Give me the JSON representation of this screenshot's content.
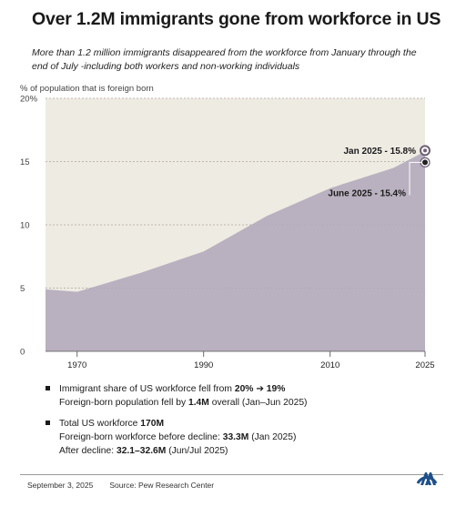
{
  "title": "Over 1.2M immigrants gone from workforce in US",
  "subtitle": "More than 1.2 million immigrants disappeared from the workforce from January through the end of July -including both workers and non-working individuals",
  "chart_data": {
    "type": "area",
    "ylabel": "% of population that is foreign born",
    "ylim": [
      0,
      20
    ],
    "yticks": [
      0,
      5,
      10,
      15,
      20
    ],
    "ytick_labels": [
      "0",
      "5",
      "10",
      "15",
      "20%"
    ],
    "xlim": [
      1965,
      2025
    ],
    "xticks": [
      1970,
      1990,
      2010,
      2025
    ],
    "x": [
      1965,
      1970,
      1980,
      1990,
      2000,
      2010,
      2020,
      2025
    ],
    "values": [
      4.9,
      4.7,
      6.2,
      7.9,
      10.7,
      12.9,
      14.5,
      15.8
    ],
    "grid": true,
    "annotations": [
      {
        "text": "Jan 2025 - 15.8%",
        "x": 2025,
        "y": 15.8
      },
      {
        "text": "June 2025 - 15.4%",
        "x": 2025,
        "y": 15.4
      }
    ],
    "colors": {
      "area": "#b9b1bf",
      "background": "#eeebe3",
      "grid": "#b9b49a",
      "marker": "#6e5f72"
    }
  },
  "bullets": [
    {
      "line1_prefix": "Immigrant share of US workforce fell from ",
      "line1_bold": "20% ➔ 19%",
      "line2_prefix": "Foreign-born population fell by  ",
      "line2_bold": "1.4M",
      "line2_suffix": " overall (Jan–Jun 2025)"
    },
    {
      "line1_prefix": "Total US workforce ",
      "line1_bold": "170M",
      "line2_prefix": "Foreign-born workforce before decline:  ",
      "line2_bold": "33.3M",
      "line2_suffix": " (Jan 2025)",
      "line3_prefix": "After decline:  ",
      "line3_bold": "32.1–32.6M",
      "line3_suffix": " (Jun/Jul 2025)"
    }
  ],
  "footer": {
    "date": "September 3, 2025",
    "source": "Source: Pew Research Center"
  },
  "logo_icon": "agency-logo-icon"
}
